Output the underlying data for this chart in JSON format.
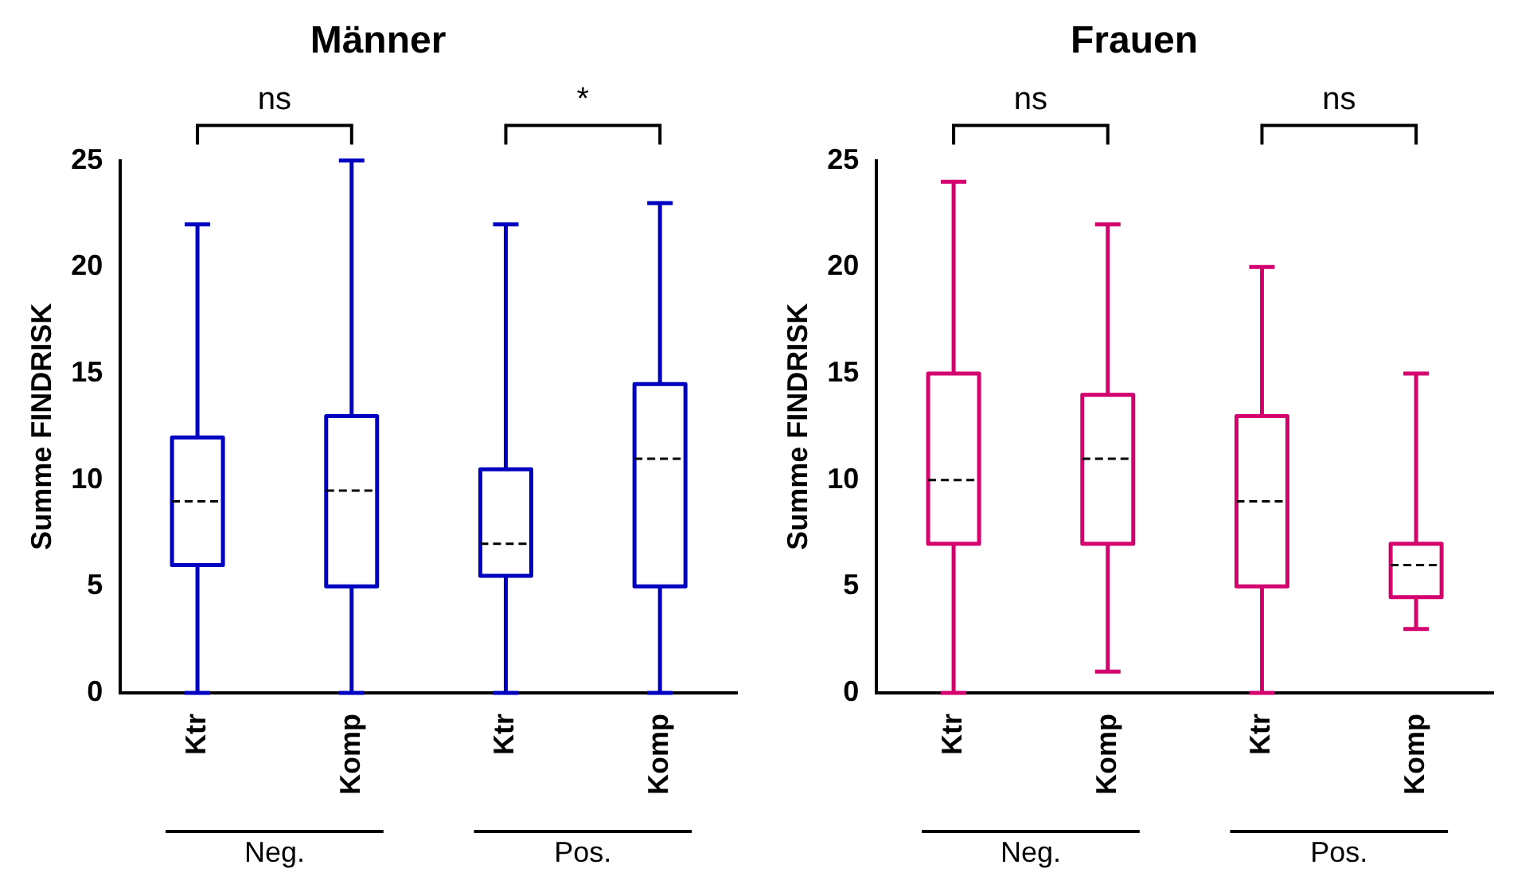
{
  "chart_data": [
    {
      "type": "box",
      "title": "Männer",
      "ylabel": "Summe FINDRISK",
      "categories": [
        "Ktr",
        "Komp",
        "Ktr",
        "Komp"
      ],
      "ylim": [
        0,
        25
      ],
      "yticks": [
        0,
        5,
        10,
        15,
        20,
        25
      ],
      "grid": false,
      "legend": false,
      "annotations": [
        "ns",
        "*",
        "Neg.",
        "Pos."
      ],
      "series": [
        {
          "color": "#0000c0",
          "boxes": [
            {
              "low": 0,
              "q1": 6,
              "median": 9,
              "q3": 12,
              "high": 22
            },
            {
              "low": 0,
              "q1": 5,
              "median": 9.5,
              "q3": 13,
              "high": 25
            },
            {
              "low": 0,
              "q1": 5.5,
              "median": 7,
              "q3": 10.5,
              "high": 22
            },
            {
              "low": 0,
              "q1": 5,
              "median": 11,
              "q3": 14.5,
              "high": 23
            }
          ]
        }
      ]
    },
    {
      "type": "box",
      "title": "Frauen",
      "ylabel": "Summe FINDRISK",
      "categories": [
        "Ktr",
        "Komp",
        "Ktr",
        "Komp"
      ],
      "ylim": [
        0,
        25
      ],
      "yticks": [
        0,
        5,
        10,
        15,
        20,
        25
      ],
      "grid": false,
      "legend": false,
      "annotations": [
        "ns",
        "ns",
        "Neg.",
        "Pos."
      ],
      "series": [
        {
          "color": "#d4006e",
          "boxes": [
            {
              "low": 0,
              "q1": 7,
              "median": 10,
              "q3": 15,
              "high": 24
            },
            {
              "low": 1,
              "q1": 7,
              "median": 11,
              "q3": 14,
              "high": 22
            },
            {
              "low": 0,
              "q1": 5,
              "median": 9,
              "q3": 13,
              "high": 20
            },
            {
              "low": 3,
              "q1": 4.5,
              "median": 6,
              "q3": 7,
              "high": 15
            }
          ]
        }
      ]
    }
  ]
}
